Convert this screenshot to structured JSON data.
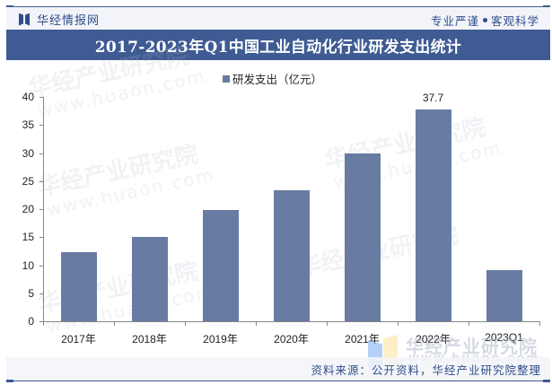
{
  "header": {
    "brand_name": "华经情报网",
    "slogan_left": "专业严谨",
    "slogan_right": "客观科学"
  },
  "title": "2017-2023年Q1中国工业自动化行业研发支出统计",
  "legend": {
    "label": "研发支出（亿元）",
    "color": "#687ba2"
  },
  "source": "资料来源：公开资料，华经产业研究院整理",
  "watermark": {
    "cn": "华经产业研究院",
    "url": "www.huaon.com"
  },
  "colors": {
    "bar": "#687ba2",
    "title_bar": "#3f5b93",
    "brand_text": "#2f4d8a",
    "header_bg": "#f3f4f9"
  },
  "chart_data": {
    "type": "bar",
    "title": "2017-2023年Q1中国工业自动化行业研发支出统计",
    "xlabel": "",
    "ylabel": "",
    "categories": [
      "2017年",
      "2018年",
      "2019年",
      "2020年",
      "2021年",
      "2022年",
      "2023Q1"
    ],
    "series": [
      {
        "name": "研发支出（亿元）",
        "values": [
          12.3,
          15.0,
          19.8,
          23.4,
          29.9,
          37.7,
          9.1
        ]
      }
    ],
    "data_labels": [
      {
        "category": "2022年",
        "text": "37.7"
      }
    ],
    "ylim": [
      0,
      40
    ],
    "yticks": [
      0,
      5,
      10,
      15,
      20,
      25,
      30,
      35,
      40
    ],
    "grid": false,
    "legend_position": "top"
  }
}
